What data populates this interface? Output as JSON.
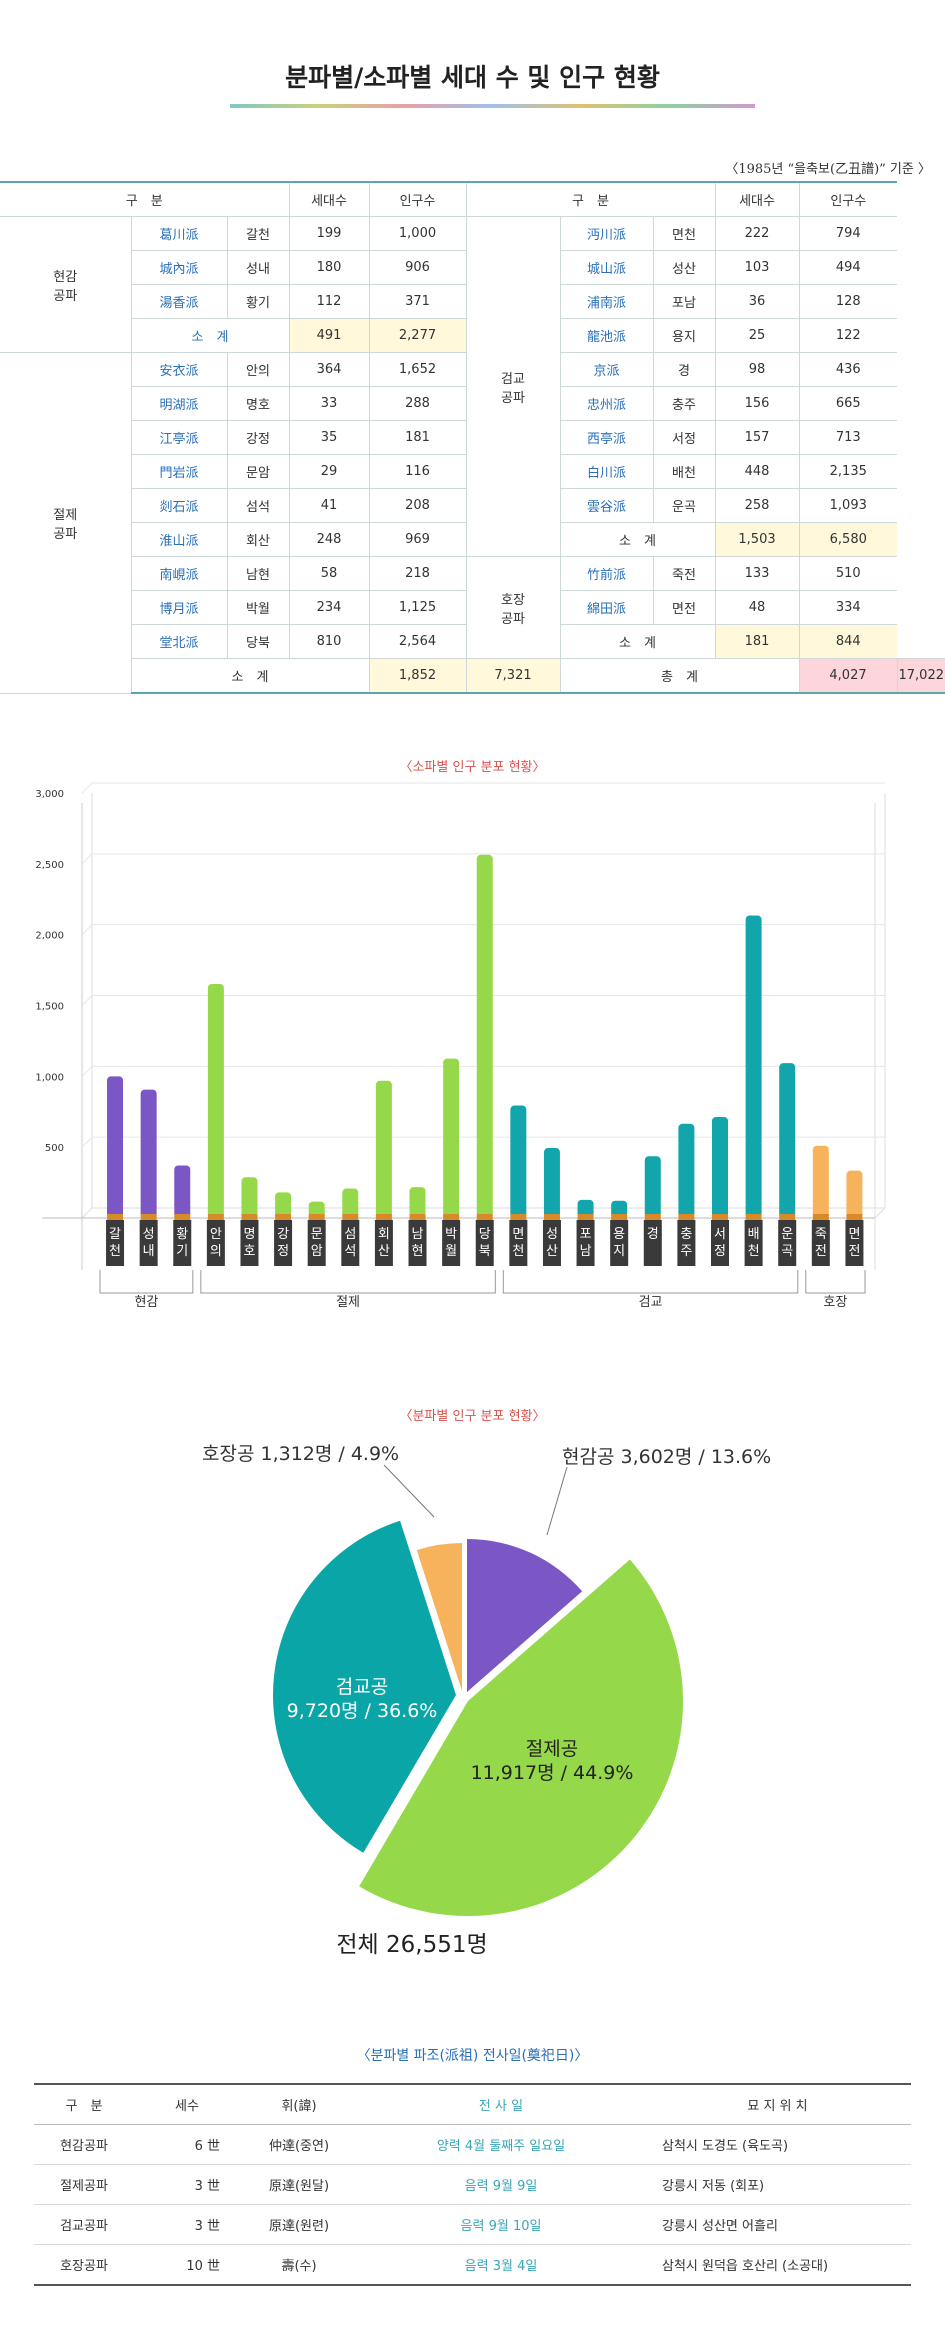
{
  "title": "분파별/소파별 세대 수 및 인구 현황",
  "basis": "〈1985년 “을축보(乙丑譜)” 기준 〉",
  "table1": {
    "headers": [
      "구　분",
      "세대수",
      "인구수",
      "구　분",
      "세대수",
      "인구수"
    ],
    "left_groups": [
      {
        "name": "현감\n공파",
        "rows": [
          {
            "sub": "葛川派",
            "place": "갈천",
            "h": "199",
            "p": "1,000"
          },
          {
            "sub": "城內派",
            "place": "성내",
            "h": "180",
            "p": "906"
          },
          {
            "sub": "湯香派",
            "place": "황기",
            "h": "112",
            "p": "371"
          }
        ],
        "subtotal": {
          "label": "소　계",
          "h": "491",
          "p": "2,277"
        }
      },
      {
        "name": "절제\n공파",
        "rows": [
          {
            "sub": "安衣派",
            "place": "안의",
            "h": "364",
            "p": "1,652"
          },
          {
            "sub": "明湖派",
            "place": "명호",
            "h": "33",
            "p": "288"
          },
          {
            "sub": "江亭派",
            "place": "강정",
            "h": "35",
            "p": "181"
          },
          {
            "sub": "門岩派",
            "place": "문암",
            "h": "29",
            "p": "116"
          },
          {
            "sub": "剡石派",
            "place": "섬석",
            "h": "41",
            "p": "208"
          },
          {
            "sub": "淮山派",
            "place": "회산",
            "h": "248",
            "p": "969"
          },
          {
            "sub": "南峴派",
            "place": "남현",
            "h": "58",
            "p": "218"
          },
          {
            "sub": "博月派",
            "place": "박월",
            "h": "234",
            "p": "1,125"
          },
          {
            "sub": "堂北派",
            "place": "당북",
            "h": "810",
            "p": "2,564"
          }
        ],
        "subtotal": {
          "label": "소　계",
          "h": "1,852",
          "p": "7,321"
        }
      }
    ],
    "right_groups": [
      {
        "name": "검교\n공파",
        "rows": [
          {
            "sub": "沔川派",
            "place": "면천",
            "h": "222",
            "p": "794"
          },
          {
            "sub": "城山派",
            "place": "성산",
            "h": "103",
            "p": "494"
          },
          {
            "sub": "浦南派",
            "place": "포남",
            "h": "36",
            "p": "128"
          },
          {
            "sub": "龍池派",
            "place": "용지",
            "h": "25",
            "p": "122"
          },
          {
            "sub": "京派",
            "place": "경",
            "h": "98",
            "p": "436"
          },
          {
            "sub": "忠州派",
            "place": "충주",
            "h": "156",
            "p": "665"
          },
          {
            "sub": "西亭派",
            "place": "서정",
            "h": "157",
            "p": "713"
          },
          {
            "sub": "白川派",
            "place": "배천",
            "h": "448",
            "p": "2,135"
          },
          {
            "sub": "雲谷派",
            "place": "운곡",
            "h": "258",
            "p": "1,093"
          }
        ],
        "subtotal": {
          "label": "소　계",
          "h": "1,503",
          "p": "6,580"
        }
      },
      {
        "name": "호장\n공파",
        "rows": [
          {
            "sub": "竹前派",
            "place": "죽전",
            "h": "133",
            "p": "510"
          },
          {
            "sub": "綿田派",
            "place": "면전",
            "h": "48",
            "p": "334"
          }
        ],
        "subtotal": {
          "label": "소　계",
          "h": "181",
          "p": "844"
        }
      }
    ],
    "total": {
      "label": "총　계",
      "h": "4,027",
      "p": "17,022"
    }
  },
  "bar_title": "〈소파별 인구 분포 현황〉",
  "pie_title": "〈분파별 인구 분포 현황〉",
  "chart_data": [
    {
      "type": "bar",
      "title": "〈소파별 인구 분포 현황〉",
      "ylim": [
        0,
        3000
      ],
      "yticks": [
        "500",
        "1,000",
        "1,500",
        "2,000",
        "2,500",
        "3,000"
      ],
      "categories": [
        "갈천",
        "성내",
        "황기",
        "안의",
        "명호",
        "강정",
        "문암",
        "섬석",
        "회산",
        "남현",
        "박월",
        "당북",
        "면천",
        "성산",
        "포남",
        "용지",
        "경",
        "충주",
        "서정",
        "배천",
        "운곡",
        "죽전",
        "면전"
      ],
      "values": [
        1000,
        906,
        371,
        1652,
        288,
        181,
        116,
        208,
        969,
        218,
        1125,
        2564,
        794,
        494,
        128,
        122,
        436,
        665,
        713,
        2135,
        1093,
        510,
        334
      ],
      "groups": [
        {
          "name": "현감",
          "start": 0,
          "count": 3,
          "color": "#7b57c6"
        },
        {
          "name": "절제",
          "start": 3,
          "count": 9,
          "color": "#95d94a"
        },
        {
          "name": "검교",
          "start": 12,
          "count": 9,
          "color": "#12a6ac"
        },
        {
          "name": "호장",
          "start": 21,
          "count": 2,
          "color": "#f7b25c"
        }
      ]
    },
    {
      "type": "pie",
      "title": "〈분파별 인구 분포 현황〉",
      "slices": [
        {
          "name": "현감공",
          "value": 3602,
          "label": "현감공 3,602명 / 13.6%",
          "color": "#7b57c6"
        },
        {
          "name": "절제공",
          "value": 11917,
          "label1": "절제공",
          "label2": "11,917명 / 44.9%",
          "color": "#95d94a"
        },
        {
          "name": "검교공",
          "value": 9720,
          "label1": "검교공",
          "label2": "9,720명 / 36.6%",
          "color": "#0aa5a6"
        },
        {
          "name": "호장공",
          "value": 1312,
          "label": "호장공 1,312명 / 4.9%",
          "color": "#f7b25c"
        }
      ],
      "total_label": "전체 26,551명"
    }
  ],
  "table3": {
    "title": "〈분파별 파조(派祖) 전사일(奠祀日)〉",
    "headers": [
      "구　분",
      "세수",
      "휘(諱)",
      "전 사 일",
      "묘 지 위 치"
    ],
    "rows": [
      [
        "현감공파",
        "6 世",
        "仲達(중연)",
        "양력 4월 둘째주 일요일",
        "삼척시 도경도 (육도곡)"
      ],
      [
        "절제공파",
        "3 世",
        "原達(원달)",
        "음력 9월 9일",
        "강릉시 저동 (회포)"
      ],
      [
        "검교공파",
        "3 世",
        "原達(원련)",
        "음력 9월 10일",
        "강릉시 성산면 어흘리"
      ],
      [
        "호장공파",
        "10 世",
        "壽(수)",
        "음력 3월 4일",
        "삼척시 원덕읍 호산리 (소공대)"
      ]
    ]
  }
}
